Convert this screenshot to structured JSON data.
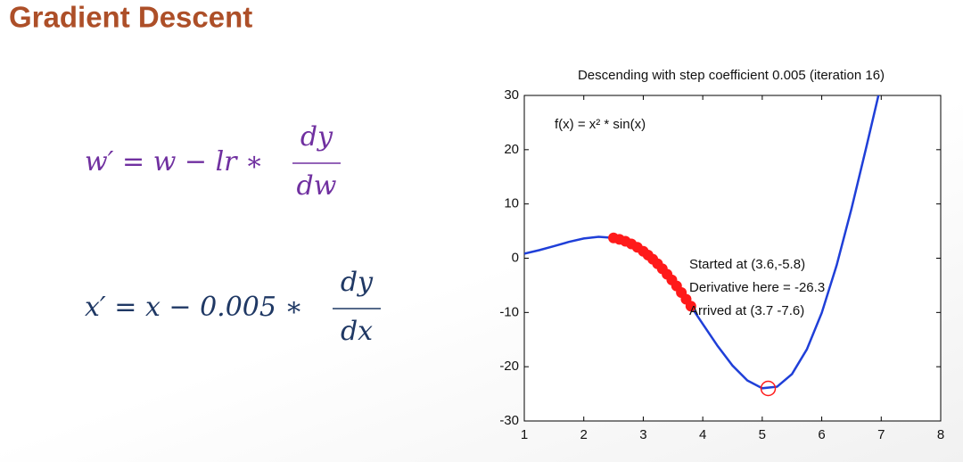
{
  "slide_title": "Gradient Descent",
  "formulas": [
    {
      "lhs": "w′ = w − lr ∗",
      "numerator": "dy",
      "denominator": "dw",
      "color": "#7030a0"
    },
    {
      "lhs": "x′ = x − 0.005 ∗",
      "numerator": "dy",
      "denominator": "dx",
      "color": "#1f3864"
    }
  ],
  "chart_data": {
    "type": "line",
    "title": "Descending with step coefficient 0.005 (iteration 16)",
    "function_label": "f(x) = x² * sin(x)",
    "annotations": [
      "Started at (3.6,-5.8)",
      "Derivative here = -26.3",
      "Arrived at (3.7 -7.6)"
    ],
    "xlim": [
      1,
      8
    ],
    "xticks": [
      1,
      2,
      3,
      4,
      5,
      6,
      7,
      8
    ],
    "ylim": [
      -30,
      30
    ],
    "yticks": [
      -30,
      -20,
      -10,
      0,
      10,
      20,
      30
    ],
    "series": [
      {
        "style": "line",
        "color": "#1f3fd8",
        "x": [
          1,
          1.25,
          1.5,
          1.75,
          2,
          2.25,
          2.5,
          2.75,
          3,
          3.25,
          3.5,
          3.75,
          4,
          4.25,
          4.5,
          4.75,
          5,
          5.25,
          5.5,
          5.75,
          6,
          6.25,
          6.5,
          6.75,
          7
        ],
        "values": [
          0.84,
          1.48,
          2.24,
          3.01,
          3.64,
          3.94,
          3.74,
          2.89,
          1.27,
          -1.14,
          -4.3,
          -8.04,
          -12.11,
          -16.17,
          -19.8,
          -22.54,
          -23.97,
          -23.68,
          -21.35,
          -16.8,
          -10.06,
          -1.3,
          9.09,
          20.5,
          32.19
        ]
      },
      {
        "style": "dots",
        "color": "#ff1a1a",
        "x": [
          2.5,
          2.6,
          2.7,
          2.8,
          2.9,
          3.0,
          3.08,
          3.16,
          3.24,
          3.32,
          3.4,
          3.48,
          3.56,
          3.64,
          3.72,
          3.8
        ],
        "values": [
          3.74,
          3.48,
          3.12,
          2.63,
          2.01,
          1.27,
          0.58,
          -0.18,
          -1.03,
          -1.96,
          -2.95,
          -4.01,
          -5.12,
          -6.33,
          -7.56,
          -8.84
        ]
      },
      {
        "style": "ring",
        "color": "#ff1a1a",
        "x": [
          5.1
        ],
        "values": [
          -24
        ]
      }
    ]
  }
}
